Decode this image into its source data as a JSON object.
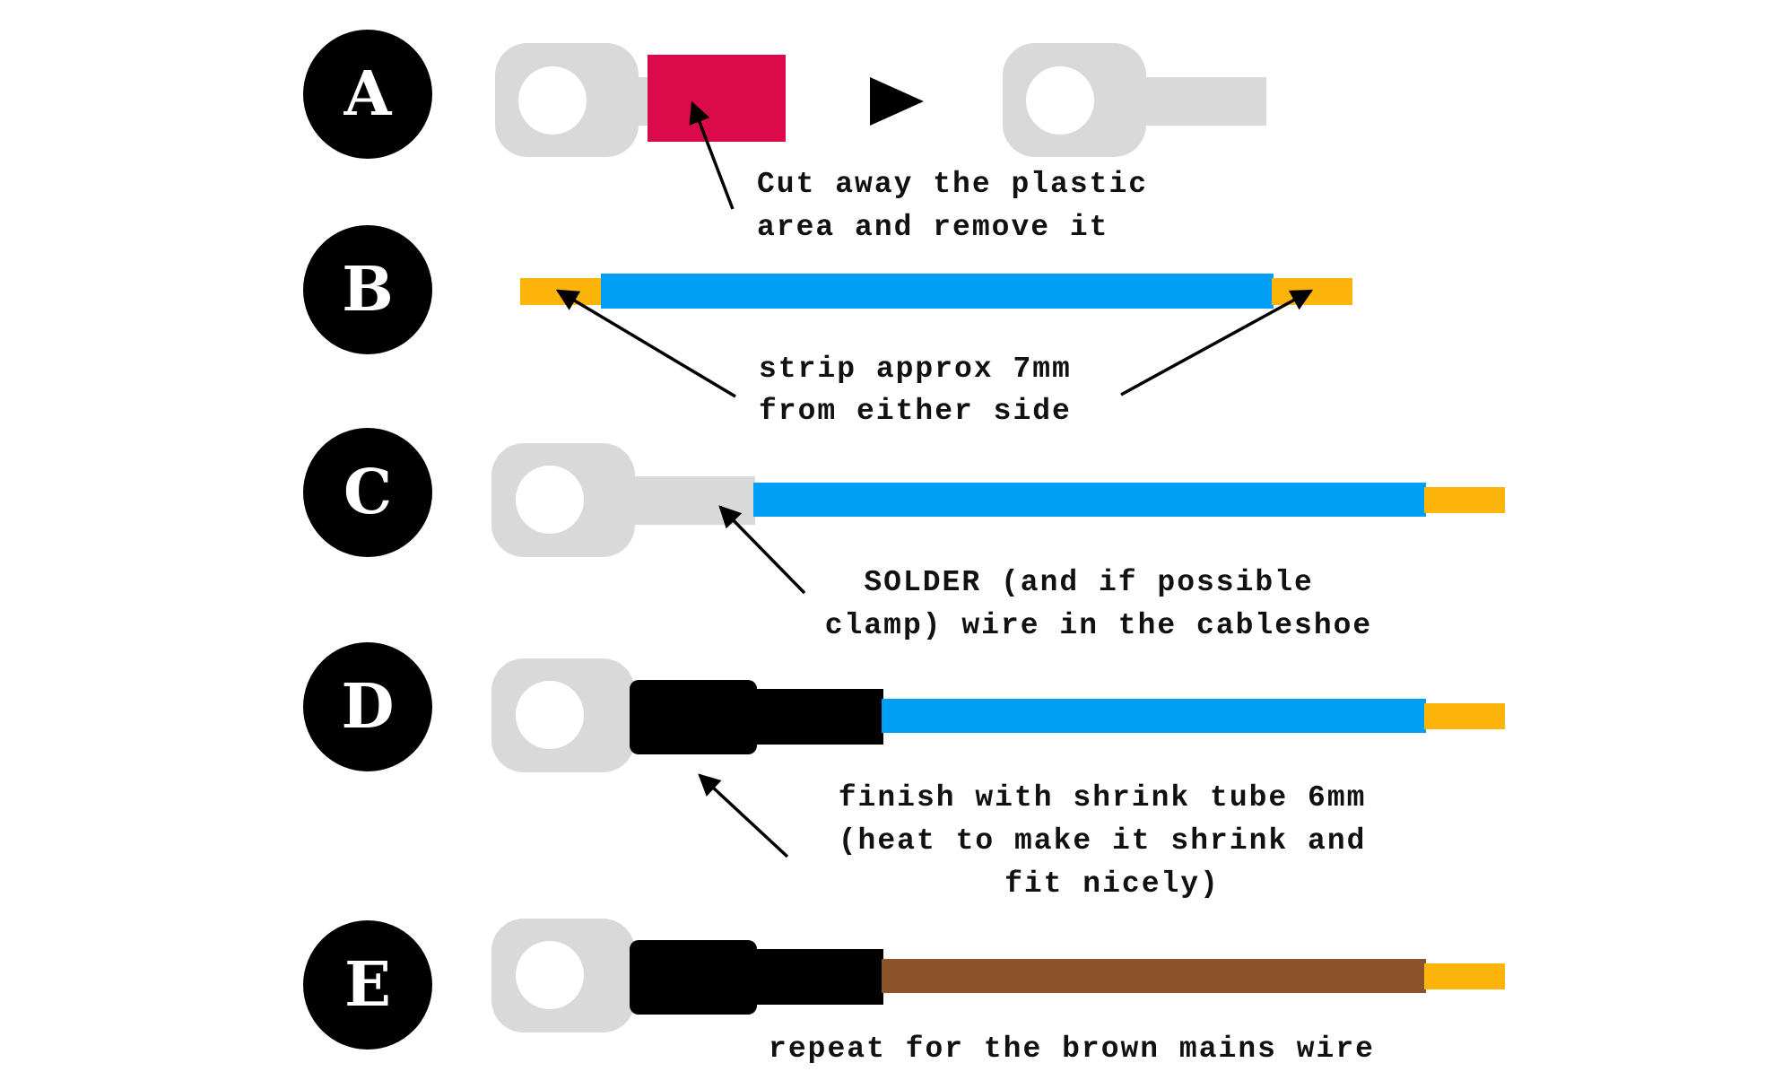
{
  "colors": {
    "lug": "#d9d9d9",
    "badge": "#000000",
    "insulation_red": "#db0a4a",
    "wire_blue": "#009ff6",
    "wire_brown": "#8b532a",
    "copper": "#fcb30a",
    "shrink_tube": "#000000",
    "arrow": "#000000"
  },
  "steps": [
    {
      "letter": "A",
      "caption": [
        "Cut away the plastic",
        "area and remove it"
      ]
    },
    {
      "letter": "B",
      "caption": [
        "strip approx 7mm",
        "from either side"
      ]
    },
    {
      "letter": "C",
      "caption": [
        "SOLDER (and if possible",
        "clamp) wire in the cableshoe"
      ]
    },
    {
      "letter": "D",
      "caption": [
        "finish with shrink tube 6mm",
        "(heat to make it shrink and",
        "fit nicely)"
      ]
    },
    {
      "letter": "E",
      "caption": [
        "repeat for the brown mains wire"
      ]
    }
  ],
  "icons": {
    "next": "play-triangle-icon",
    "pointer": "arrow-icon"
  }
}
